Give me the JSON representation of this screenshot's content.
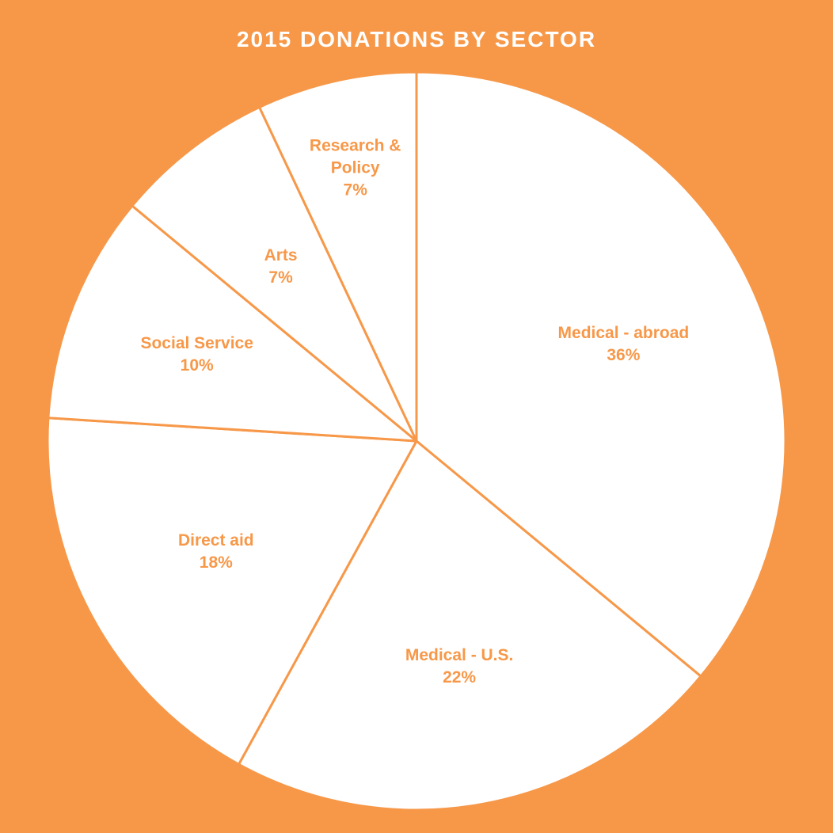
{
  "colors": {
    "background": "#F79849",
    "slice_fill": "#FFFFFF",
    "slice_stroke": "#F79849",
    "title_text": "#FFFFFF",
    "label_text": "#F79849"
  },
  "chart_data": {
    "type": "pie",
    "title": "2015 DONATIONS BY SECTOR",
    "slices": [
      {
        "label_lines": [
          "Medical - abroad"
        ],
        "value": 36,
        "display": "36%"
      },
      {
        "label_lines": [
          "Medical - U.S."
        ],
        "value": 22,
        "display": "22%"
      },
      {
        "label_lines": [
          "Direct aid"
        ],
        "value": 18,
        "display": "18%"
      },
      {
        "label_lines": [
          "Social Service"
        ],
        "value": 10,
        "display": "10%"
      },
      {
        "label_lines": [
          "Arts"
        ],
        "value": 7,
        "display": "7%"
      },
      {
        "label_lines": [
          "Research &",
          "Policy"
        ],
        "value": 7,
        "display": "7%"
      }
    ],
    "start": "12 o'clock",
    "direction": "clockwise",
    "legend": "none"
  }
}
